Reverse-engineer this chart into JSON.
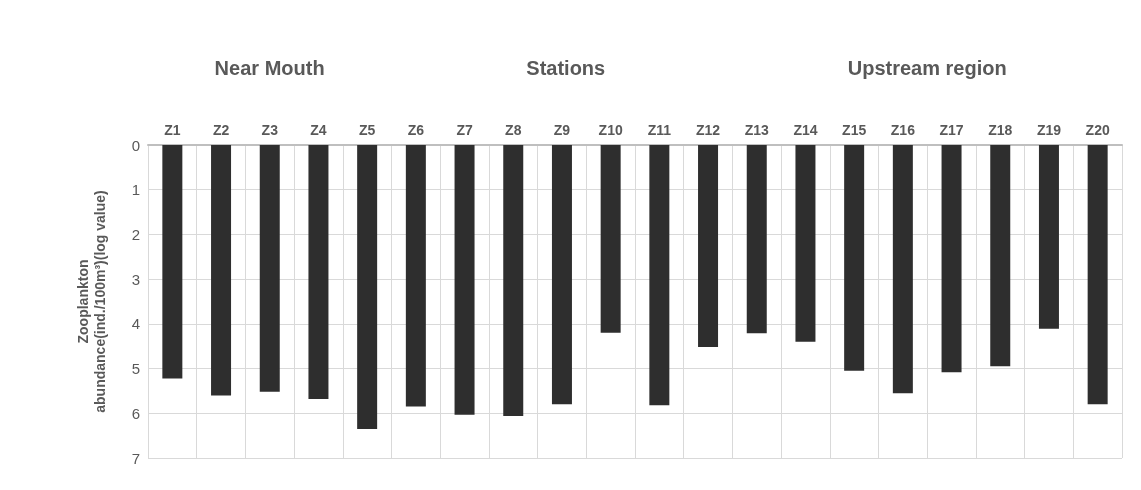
{
  "chart_data": {
    "type": "bar",
    "ylabel": "Zooplankton abundance(ind./100m³)(log value)",
    "annotations": [
      "Near Mouth",
      "Stations",
      "Upstream region"
    ],
    "categories": [
      "Z1",
      "Z2",
      "Z3",
      "Z4",
      "Z5",
      "Z6",
      "Z7",
      "Z8",
      "Z9",
      "Z10",
      "Z11",
      "Z12",
      "Z13",
      "Z14",
      "Z15",
      "Z16",
      "Z17",
      "Z18",
      "Z19",
      "Z20"
    ],
    "values": [
      5.22,
      5.6,
      5.52,
      5.68,
      6.35,
      5.85,
      6.03,
      6.06,
      5.8,
      4.2,
      5.82,
      4.52,
      4.21,
      4.4,
      5.05,
      5.55,
      5.08,
      4.95,
      4.11,
      5.8
    ],
    "color": "#2e2e2e",
    "ylim": [
      7,
      0
    ],
    "yticks": [
      0,
      1,
      2,
      3,
      4,
      5,
      6,
      7
    ],
    "grid": true
  }
}
